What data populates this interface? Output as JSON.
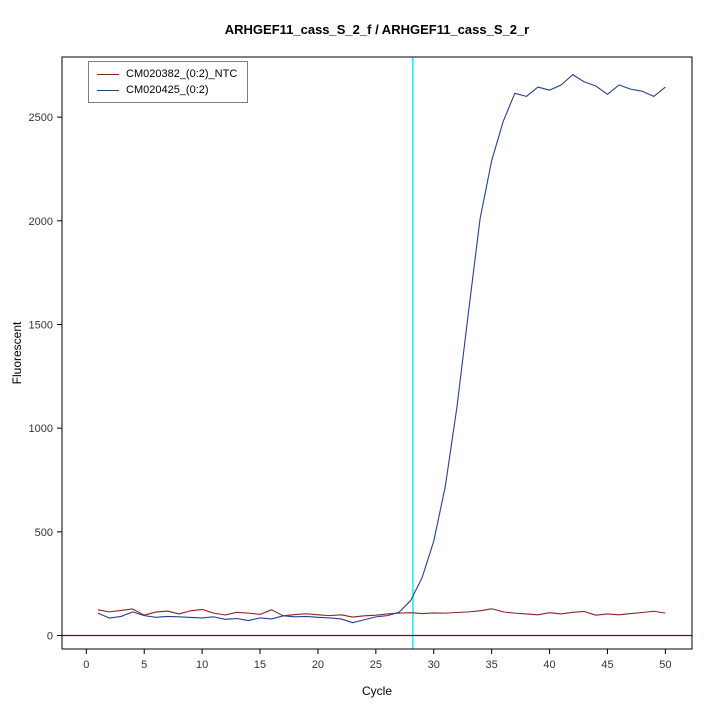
{
  "chart_data": {
    "type": "line",
    "title": "ARHGEF11_cass_S_2_f / ARHGEF11_cass_S_2_r",
    "xlabel": "Cycle",
    "ylabel": "Fluorescent",
    "xlim": [
      -2.1,
      52.3
    ],
    "ylim": [
      -65,
      2790
    ],
    "xticks": [
      0,
      5,
      10,
      15,
      20,
      25,
      30,
      35,
      40,
      45,
      50
    ],
    "yticks": [
      0,
      500,
      1000,
      1500,
      2000,
      2500
    ],
    "grid": false,
    "legend_position": "top-left",
    "x": [
      1,
      2,
      3,
      4,
      5,
      6,
      7,
      8,
      9,
      10,
      11,
      12,
      13,
      14,
      15,
      16,
      17,
      18,
      19,
      20,
      21,
      22,
      23,
      24,
      25,
      26,
      27,
      28,
      29,
      30,
      31,
      32,
      33,
      34,
      35,
      36,
      37,
      38,
      39,
      40,
      41,
      42,
      43,
      44,
      45,
      46,
      47,
      48,
      49,
      50
    ],
    "series": [
      {
        "name": "CM020382_(0:2)_NTC",
        "color": "#8b2323",
        "values": [
          124,
          114,
          121,
          128,
          98,
          113,
          118,
          104,
          119,
          126,
          108,
          99,
          112,
          108,
          102,
          124,
          95,
          101,
          105,
          100,
          96,
          100,
          89,
          95,
          98,
          104,
          108,
          110,
          106,
          109,
          108,
          111,
          114,
          119,
          129,
          114,
          108,
          104,
          100,
          110,
          104,
          112,
          116,
          98,
          104,
          100,
          106,
          111,
          117,
          108
        ]
      },
      {
        "name": "CM020425_(0:2)",
        "color": "#27408b",
        "values": [
          108,
          84,
          92,
          114,
          96,
          88,
          92,
          90,
          87,
          85,
          90,
          78,
          82,
          72,
          85,
          80,
          95,
          90,
          92,
          88,
          85,
          80,
          62,
          76,
          90,
          96,
          112,
          168,
          280,
          455,
          720,
          1100,
          1560,
          2010,
          2290,
          2480,
          2615,
          2600,
          2645,
          2630,
          2655,
          2705,
          2670,
          2650,
          2610,
          2655,
          2635,
          2625,
          2600,
          2645
        ]
      }
    ],
    "vline": {
      "x": 28.2,
      "color": "#00eeee"
    },
    "baseline": {
      "y": 0,
      "color": "#8b0000"
    }
  }
}
